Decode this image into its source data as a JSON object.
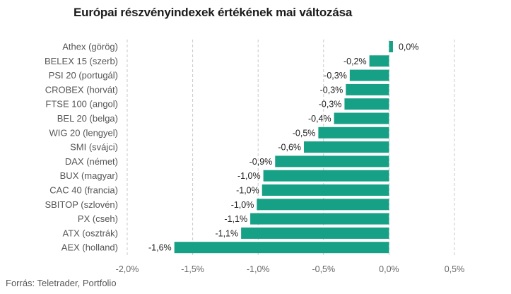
{
  "chart_data": {
    "type": "bar",
    "orientation": "horizontal",
    "title": "Európai részvényindexek értékének mai változása",
    "source": "Forrás: Teletrader, Portfolio",
    "categories": [
      "Athex (görög)",
      "BELEX 15 (szerb)",
      "PSI 20 (portugál)",
      "CROBEX (horvát)",
      "FTSE 100 (angol)",
      "BEL 20 (belga)",
      "WIG 20 (lengyel)",
      "SMI (svájci)",
      "DAX (német)",
      "BUX (magyar)",
      "CAC 40 (francia)",
      "SBITOP (szlovén)",
      "PX (cseh)",
      "ATX (osztrák)",
      "AEX (holland)"
    ],
    "values": [
      0.03,
      -0.15,
      -0.3,
      -0.33,
      -0.34,
      -0.42,
      -0.54,
      -0.65,
      -0.87,
      -0.96,
      -0.97,
      -1.01,
      -1.06,
      -1.13,
      -1.64
    ],
    "value_labels": [
      "0,0%",
      "-0,2%",
      "-0,3%",
      "-0,3%",
      "-0,3%",
      "-0,4%",
      "-0,5%",
      "-0,6%",
      "-0,9%",
      "-1,0%",
      "-1,0%",
      "-1,0%",
      "-1,1%",
      "-1,1%",
      "-1,6%"
    ],
    "xlim": [
      -2.0,
      0.5
    ],
    "xticks": [
      -2.0,
      -1.5,
      -1.0,
      -0.5,
      0.0,
      0.5
    ],
    "xtick_labels": [
      "-2,0%",
      "-1,5%",
      "-1,0%",
      "-0,5%",
      "0,0%",
      "0,5%"
    ],
    "grid": true,
    "bar_color": "#16a085",
    "xlabel": "",
    "ylabel": ""
  }
}
